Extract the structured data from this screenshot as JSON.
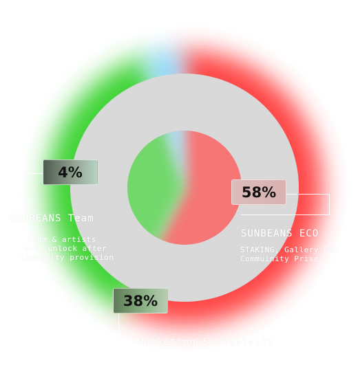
{
  "chart_data": {
    "type": "pie",
    "categories": [
      "SUNBEANS ECO",
      "Marketing & Liquidity",
      "SUNBEANS Team"
    ],
    "values": [
      58,
      38,
      4
    ],
    "value_labels": [
      "58%",
      "38%",
      "4%"
    ],
    "colors": [
      "#ff3b3b",
      "#35d12a",
      "#7fd4ff"
    ],
    "ring_color": "#d9d9d9"
  },
  "segments": {
    "team": {
      "value_label": "4%",
      "title": "SUNBEANS Team",
      "desc": [
        "team & artists",
        "thly unlock after",
        "liquidity provision"
      ]
    },
    "eco": {
      "value_label": "58%",
      "title": "SUNBEANS ECO",
      "desc": [
        "STAKING, Gallery Con",
        "Commuinity Prise"
      ]
    },
    "mkt": {
      "value_label": "38%",
      "title": "Marketing & Liquidity"
    }
  }
}
